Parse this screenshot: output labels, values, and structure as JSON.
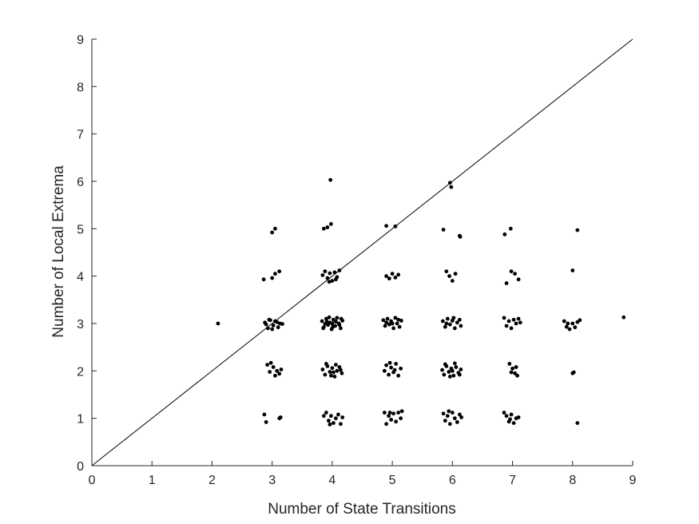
{
  "chart_data": {
    "type": "scatter",
    "title": "",
    "xlabel": "Number of State Transitions",
    "ylabel": "Number of Local Extrema",
    "xlim": [
      0,
      9
    ],
    "ylim": [
      0,
      9
    ],
    "xticks": [
      "0",
      "1",
      "2",
      "3",
      "4",
      "5",
      "6",
      "7",
      "8",
      "9"
    ],
    "yticks": [
      "0",
      "1",
      "2",
      "3",
      "4",
      "5",
      "6",
      "7",
      "8",
      "9"
    ],
    "grid": false,
    "legend": "none",
    "reference_line": {
      "x": [
        0,
        9
      ],
      "y": [
        0,
        9
      ]
    },
    "point_color": "#000000",
    "line_color": "#000000",
    "series": [
      {
        "points": [
          [
            2.1,
            3.0
          ],
          [
            2.88,
            3.02
          ],
          [
            2.93,
            2.9
          ],
          [
            2.97,
            3.07
          ],
          [
            3.02,
            2.96
          ],
          [
            3.05,
            3.05
          ],
          [
            3.1,
            2.92
          ],
          [
            3.13,
            3.0
          ],
          [
            3.17,
            2.99
          ],
          [
            2.95,
            3.08
          ],
          [
            3.0,
            2.88
          ],
          [
            2.9,
            2.98
          ],
          [
            3.08,
            3.03
          ],
          [
            2.92,
            2.13
          ],
          [
            2.96,
            1.98
          ],
          [
            3.02,
            2.08
          ],
          [
            3.08,
            2.0
          ],
          [
            3.12,
            1.94
          ],
          [
            3.15,
            2.03
          ],
          [
            2.98,
            2.17
          ],
          [
            3.05,
            1.9
          ],
          [
            2.87,
            1.08
          ],
          [
            2.9,
            0.92
          ],
          [
            3.12,
            1.0
          ],
          [
            3.14,
            1.02
          ],
          [
            2.86,
            3.93
          ],
          [
            3.0,
            3.96
          ],
          [
            3.05,
            4.05
          ],
          [
            3.12,
            4.1
          ],
          [
            3.0,
            4.92
          ],
          [
            3.05,
            5.0
          ],
          [
            3.83,
            3.05
          ],
          [
            3.86,
            2.92
          ],
          [
            3.9,
            3.1
          ],
          [
            3.93,
            2.97
          ],
          [
            3.96,
            3.02
          ],
          [
            3.99,
            2.88
          ],
          [
            4.02,
            3.08
          ],
          [
            4.05,
            2.95
          ],
          [
            4.08,
            3.12
          ],
          [
            4.11,
            3.0
          ],
          [
            4.14,
            2.9
          ],
          [
            4.17,
            3.06
          ],
          [
            3.88,
            2.99
          ],
          [
            3.95,
            3.13
          ],
          [
            4.01,
            2.93
          ],
          [
            4.06,
            3.04
          ],
          [
            4.12,
            2.97
          ],
          [
            3.91,
            3.04
          ],
          [
            4.0,
            3.0
          ],
          [
            4.15,
            3.1
          ],
          [
            3.85,
            2.9
          ],
          [
            3.84,
            2.03
          ],
          [
            3.88,
            1.92
          ],
          [
            3.92,
            2.1
          ],
          [
            3.96,
            1.98
          ],
          [
            4.0,
            2.06
          ],
          [
            4.04,
            1.88
          ],
          [
            4.08,
            2.0
          ],
          [
            4.12,
            2.08
          ],
          [
            4.16,
            1.95
          ],
          [
            3.9,
            2.15
          ],
          [
            3.98,
            1.9
          ],
          [
            4.06,
            2.13
          ],
          [
            4.14,
            2.02
          ],
          [
            4.02,
            1.97
          ],
          [
            3.86,
            1.05
          ],
          [
            3.9,
            1.12
          ],
          [
            3.94,
            0.95
          ],
          [
            3.98,
            1.05
          ],
          [
            4.02,
            0.9
          ],
          [
            4.06,
            1.0
          ],
          [
            4.1,
            1.08
          ],
          [
            4.14,
            0.88
          ],
          [
            4.17,
            1.02
          ],
          [
            3.96,
            0.87
          ],
          [
            3.84,
            4.02
          ],
          [
            3.88,
            4.1
          ],
          [
            3.92,
            3.96
          ],
          [
            3.96,
            4.06
          ],
          [
            4.0,
            3.9
          ],
          [
            4.04,
            4.08
          ],
          [
            4.08,
            3.98
          ],
          [
            4.12,
            4.12
          ],
          [
            3.95,
            3.88
          ],
          [
            4.06,
            3.93
          ],
          [
            3.86,
            5.0
          ],
          [
            3.92,
            5.03
          ],
          [
            3.98,
            5.1
          ],
          [
            3.97,
            6.03
          ],
          [
            4.85,
            3.07
          ],
          [
            4.88,
            2.95
          ],
          [
            4.92,
            3.1
          ],
          [
            4.95,
            2.98
          ],
          [
            4.98,
            3.05
          ],
          [
            5.02,
            2.9
          ],
          [
            5.05,
            3.12
          ],
          [
            5.08,
            3.0
          ],
          [
            5.12,
            2.93
          ],
          [
            5.15,
            3.06
          ],
          [
            4.9,
            3.02
          ],
          [
            5.0,
            3.0
          ],
          [
            5.1,
            3.08
          ],
          [
            4.87,
            2.0
          ],
          [
            4.9,
            2.12
          ],
          [
            4.94,
            1.92
          ],
          [
            4.98,
            2.07
          ],
          [
            5.02,
            1.97
          ],
          [
            5.06,
            2.15
          ],
          [
            5.1,
            1.9
          ],
          [
            5.14,
            2.05
          ],
          [
            4.96,
            2.17
          ],
          [
            5.04,
            2.02
          ],
          [
            4.87,
            1.12
          ],
          [
            4.9,
            0.88
          ],
          [
            4.94,
            1.05
          ],
          [
            4.98,
            0.97
          ],
          [
            5.02,
            1.1
          ],
          [
            5.06,
            0.93
          ],
          [
            5.1,
            1.12
          ],
          [
            5.14,
            1.0
          ],
          [
            5.16,
            1.15
          ],
          [
            4.96,
            1.12
          ],
          [
            4.9,
            4.0
          ],
          [
            4.95,
            3.95
          ],
          [
            5.0,
            4.05
          ],
          [
            5.05,
            3.97
          ],
          [
            5.1,
            4.03
          ],
          [
            4.9,
            5.06
          ],
          [
            5.05,
            5.05
          ],
          [
            5.84,
            3.05
          ],
          [
            5.88,
            2.93
          ],
          [
            5.92,
            3.1
          ],
          [
            5.96,
            2.98
          ],
          [
            6.0,
            3.06
          ],
          [
            6.04,
            2.9
          ],
          [
            6.08,
            3.02
          ],
          [
            6.12,
            3.08
          ],
          [
            6.14,
            2.95
          ],
          [
            5.9,
            3.0
          ],
          [
            6.02,
            3.12
          ],
          [
            5.83,
            2.02
          ],
          [
            5.86,
            1.92
          ],
          [
            5.9,
            2.1
          ],
          [
            5.94,
            1.98
          ],
          [
            5.98,
            2.05
          ],
          [
            6.02,
            1.9
          ],
          [
            6.06,
            2.08
          ],
          [
            6.1,
            1.96
          ],
          [
            6.14,
            2.03
          ],
          [
            5.88,
            2.14
          ],
          [
            5.96,
            1.88
          ],
          [
            6.04,
            2.16
          ],
          [
            6.12,
            1.92
          ],
          [
            6.0,
            2.0
          ],
          [
            5.85,
            1.1
          ],
          [
            5.88,
            0.95
          ],
          [
            5.92,
            1.05
          ],
          [
            5.96,
            0.88
          ],
          [
            6.0,
            1.12
          ],
          [
            6.04,
            1.0
          ],
          [
            6.08,
            0.92
          ],
          [
            6.12,
            1.08
          ],
          [
            6.15,
            1.02
          ],
          [
            5.94,
            1.15
          ],
          [
            5.9,
            4.1
          ],
          [
            5.95,
            4.0
          ],
          [
            6.0,
            3.9
          ],
          [
            6.05,
            4.05
          ],
          [
            5.85,
            4.98
          ],
          [
            6.12,
            4.85
          ],
          [
            6.13,
            4.83
          ],
          [
            5.96,
            5.97
          ],
          [
            5.98,
            5.88
          ],
          [
            6.86,
            3.12
          ],
          [
            6.9,
            2.95
          ],
          [
            6.94,
            3.05
          ],
          [
            6.98,
            2.9
          ],
          [
            7.02,
            3.08
          ],
          [
            7.06,
            3.0
          ],
          [
            7.1,
            3.1
          ],
          [
            7.13,
            3.02
          ],
          [
            6.95,
            2.15
          ],
          [
            7.0,
            2.05
          ],
          [
            7.04,
            1.95
          ],
          [
            7.06,
            2.08
          ],
          [
            7.08,
            1.9
          ],
          [
            6.98,
            1.97
          ],
          [
            6.86,
            1.12
          ],
          [
            6.9,
            1.05
          ],
          [
            6.94,
            0.93
          ],
          [
            6.98,
            1.08
          ],
          [
            7.02,
            0.9
          ],
          [
            7.06,
            1.0
          ],
          [
            7.1,
            1.02
          ],
          [
            6.96,
            0.98
          ],
          [
            6.9,
            3.85
          ],
          [
            6.98,
            4.1
          ],
          [
            7.04,
            4.05
          ],
          [
            7.1,
            3.93
          ],
          [
            6.87,
            4.88
          ],
          [
            6.97,
            5.0
          ],
          [
            7.86,
            3.05
          ],
          [
            7.9,
            2.93
          ],
          [
            7.95,
            2.88
          ],
          [
            8.0,
            3.0
          ],
          [
            8.04,
            2.92
          ],
          [
            8.08,
            3.03
          ],
          [
            8.12,
            3.07
          ],
          [
            7.92,
            3.0
          ],
          [
            8.0,
            1.95
          ],
          [
            8.02,
            1.97
          ],
          [
            8.08,
            0.9
          ],
          [
            8.0,
            4.12
          ],
          [
            8.08,
            4.97
          ],
          [
            8.85,
            3.13
          ]
        ]
      }
    ]
  }
}
